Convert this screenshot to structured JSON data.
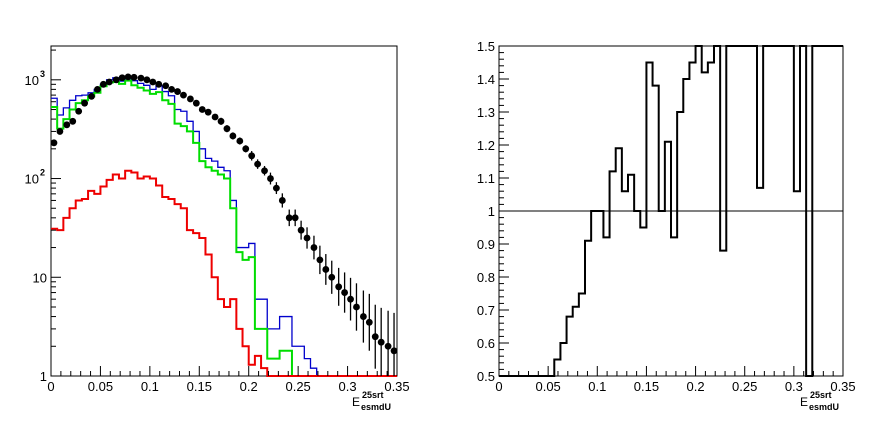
{
  "chart_data": [
    {
      "type": "line",
      "subtype": "histogram",
      "ylog": true,
      "xlim": [
        0,
        0.35
      ],
      "ylim": [
        1,
        2200
      ],
      "xticks": [
        "0",
        "0.05",
        "0.1",
        "0.15",
        "0.2",
        "0.25",
        "0.3",
        "0.35"
      ],
      "yticks": [
        {
          "value": 1,
          "label": "1"
        },
        {
          "value": 10,
          "label": "10"
        },
        {
          "value": 100,
          "label": "10",
          "exp": "2"
        },
        {
          "value": 1000,
          "label": "10",
          "exp": "3"
        }
      ],
      "xlabel_main": "E",
      "xlabel_sup": "25srt",
      "xlabel_sub": "esmdU",
      "bin_width": 0.00625,
      "colors": {
        "blue": "#0000cc",
        "green": "#00dd00",
        "red": "#ee0000",
        "points": "#000000"
      },
      "series": [
        {
          "values": [
            650,
            440,
            520,
            620,
            690,
            700,
            740,
            800,
            900,
            1000,
            1050,
            970,
            1050,
            980,
            920,
            880,
            800,
            870,
            760,
            690,
            500,
            480,
            380,
            300,
            200,
            160,
            150,
            130,
            120,
            60,
            20,
            20,
            22,
            6,
            6,
            3,
            3,
            4,
            4,
            2,
            2,
            1.5,
            1.2,
            1,
            1,
            1,
            1,
            1,
            1,
            1,
            1,
            1,
            1,
            1,
            1,
            1
          ]
        },
        {
          "values": [
            530,
            320,
            400,
            500,
            580,
            620,
            680,
            740,
            860,
            940,
            950,
            910,
            980,
            880,
            830,
            780,
            720,
            750,
            620,
            570,
            360,
            340,
            300,
            230,
            150,
            130,
            120,
            110,
            100,
            50,
            18,
            15,
            16,
            3,
            3,
            1.5,
            1.5,
            1.8,
            1.8,
            1,
            1,
            1,
            1,
            1,
            1,
            1,
            1,
            1,
            1,
            1,
            1,
            1,
            1,
            1,
            1,
            1
          ]
        },
        {
          "values": [
            31,
            30,
            40,
            50,
            60,
            62,
            75,
            70,
            83,
            97,
            110,
            100,
            120,
            115,
            100,
            105,
            100,
            85,
            65,
            62,
            55,
            50,
            30,
            28,
            25,
            17,
            10,
            6,
            5,
            6,
            3,
            2,
            1.3,
            1.6,
            1.2,
            1,
            1,
            1,
            1,
            1,
            1,
            1,
            1,
            1,
            1,
            1,
            1,
            1,
            1,
            1,
            1,
            1,
            1,
            1,
            1,
            1
          ]
        },
        {
          "x": [
            0.003,
            0.009,
            0.016,
            0.022,
            0.028,
            0.034,
            0.041,
            0.047,
            0.053,
            0.059,
            0.066,
            0.072,
            0.078,
            0.084,
            0.091,
            0.097,
            0.103,
            0.109,
            0.116,
            0.122,
            0.128,
            0.134,
            0.141,
            0.147,
            0.153,
            0.159,
            0.166,
            0.172,
            0.178,
            0.184,
            0.191,
            0.197,
            0.203,
            0.209,
            0.216,
            0.222,
            0.228,
            0.234,
            0.241,
            0.247,
            0.253,
            0.259,
            0.266,
            0.272,
            0.278,
            0.284,
            0.291,
            0.297,
            0.303,
            0.309,
            0.316,
            0.322,
            0.328,
            0.334,
            0.341,
            0.347
          ],
          "y": [
            230,
            300,
            350,
            380,
            480,
            580,
            680,
            800,
            900,
            950,
            1000,
            1050,
            1070,
            1060,
            1040,
            1000,
            950,
            900,
            870,
            800,
            760,
            700,
            640,
            580,
            500,
            470,
            420,
            380,
            320,
            270,
            240,
            200,
            170,
            140,
            120,
            100,
            80,
            60,
            40,
            40,
            30,
            25,
            20,
            15,
            12,
            10,
            8,
            7,
            6,
            5,
            4,
            3.5,
            2.5,
            2.2,
            2,
            1.8
          ],
          "yerr": [
            0.02,
            0.02,
            0.02,
            0.02,
            0.02,
            0.02,
            0.02,
            0.02,
            0.02,
            0.02,
            0.02,
            0.02,
            0.02,
            0.02,
            0.02,
            0.02,
            0.02,
            0.02,
            0.02,
            0.02,
            0.02,
            0.02,
            0.02,
            0.02,
            0.02,
            0.02,
            0.02,
            0.03,
            0.03,
            0.03,
            0.03,
            0.03,
            0.04,
            0.04,
            0.04,
            0.05,
            0.05,
            0.06,
            0.07,
            0.07,
            0.08,
            0.09,
            0.1,
            0.12,
            0.13,
            0.14,
            0.16,
            0.17,
            0.18,
            0.2,
            0.22,
            0.24,
            0.27,
            0.29,
            0.3,
            0.32
          ]
        }
      ]
    },
    {
      "type": "line",
      "subtype": "histogram",
      "xlim": [
        0,
        0.35
      ],
      "ylim": [
        0.5,
        1.5
      ],
      "xticks": [
        "0",
        "0.05",
        "0.1",
        "0.15",
        "0.2",
        "0.25",
        "0.3",
        "0.35"
      ],
      "yticks": [
        "0.5",
        "0.6",
        "0.7",
        "0.8",
        "0.9",
        "1",
        "1.1",
        "1.2",
        "1.3",
        "1.4",
        "1.5"
      ],
      "reference_line": 1,
      "xlabel_main": "E",
      "xlabel_sup": "25srt",
      "xlabel_sub": "esmdU",
      "bin_width": 0.00625,
      "series": [
        {
          "values": [
            0.5,
            0.5,
            0.5,
            0.5,
            0.5,
            0.5,
            0.5,
            0.5,
            0.5,
            0.55,
            0.6,
            0.68,
            0.71,
            0.75,
            0.91,
            1.0,
            1.0,
            0.92,
            1.12,
            1.19,
            1.06,
            1.11,
            1.0,
            0.95,
            1.45,
            1.38,
            1.0,
            1.21,
            0.92,
            1.3,
            1.4,
            1.45,
            1.5,
            1.42,
            1.45,
            1.5,
            0.88,
            1.5,
            1.5,
            1.5,
            1.5,
            1.5,
            1.07,
            1.5,
            1.5,
            1.5,
            1.5,
            1.5,
            1.06,
            1.5,
            0.5,
            1.5,
            1.5,
            1.5,
            1.5,
            1.5
          ]
        }
      ]
    }
  ]
}
